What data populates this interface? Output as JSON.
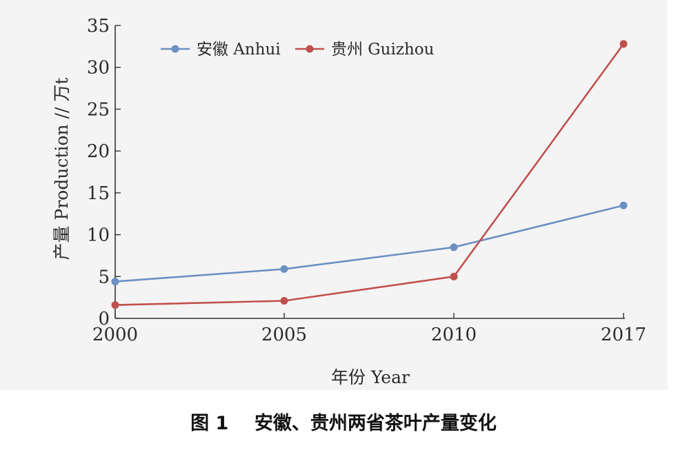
{
  "caption": "图 1    安徽、贵州两省茶叶产量变化",
  "colors": {
    "anhui": "#6b8fc2",
    "guizhou": "#c0504d",
    "axis": "#333333",
    "panel": "#f4f4f4"
  },
  "chart_data": {
    "type": "line",
    "title": "",
    "xlabel": "年份 Year",
    "ylabel": "产量 Production // 万t",
    "categories": [
      "2000",
      "2005",
      "2010",
      "2017"
    ],
    "yticks": [
      "0",
      "5",
      "10",
      "15",
      "20",
      "25",
      "30",
      "35"
    ],
    "ylim": [
      0,
      35
    ],
    "grid": false,
    "legend_position": "top-left",
    "series": [
      {
        "name": "安徽 Anhui",
        "color": "#6b8fc2",
        "values": [
          4.4,
          5.9,
          8.5,
          13.5
        ]
      },
      {
        "name": "贵州 Guizhou",
        "color": "#c0504d",
        "values": [
          1.6,
          2.1,
          5.0,
          32.8
        ]
      }
    ]
  }
}
